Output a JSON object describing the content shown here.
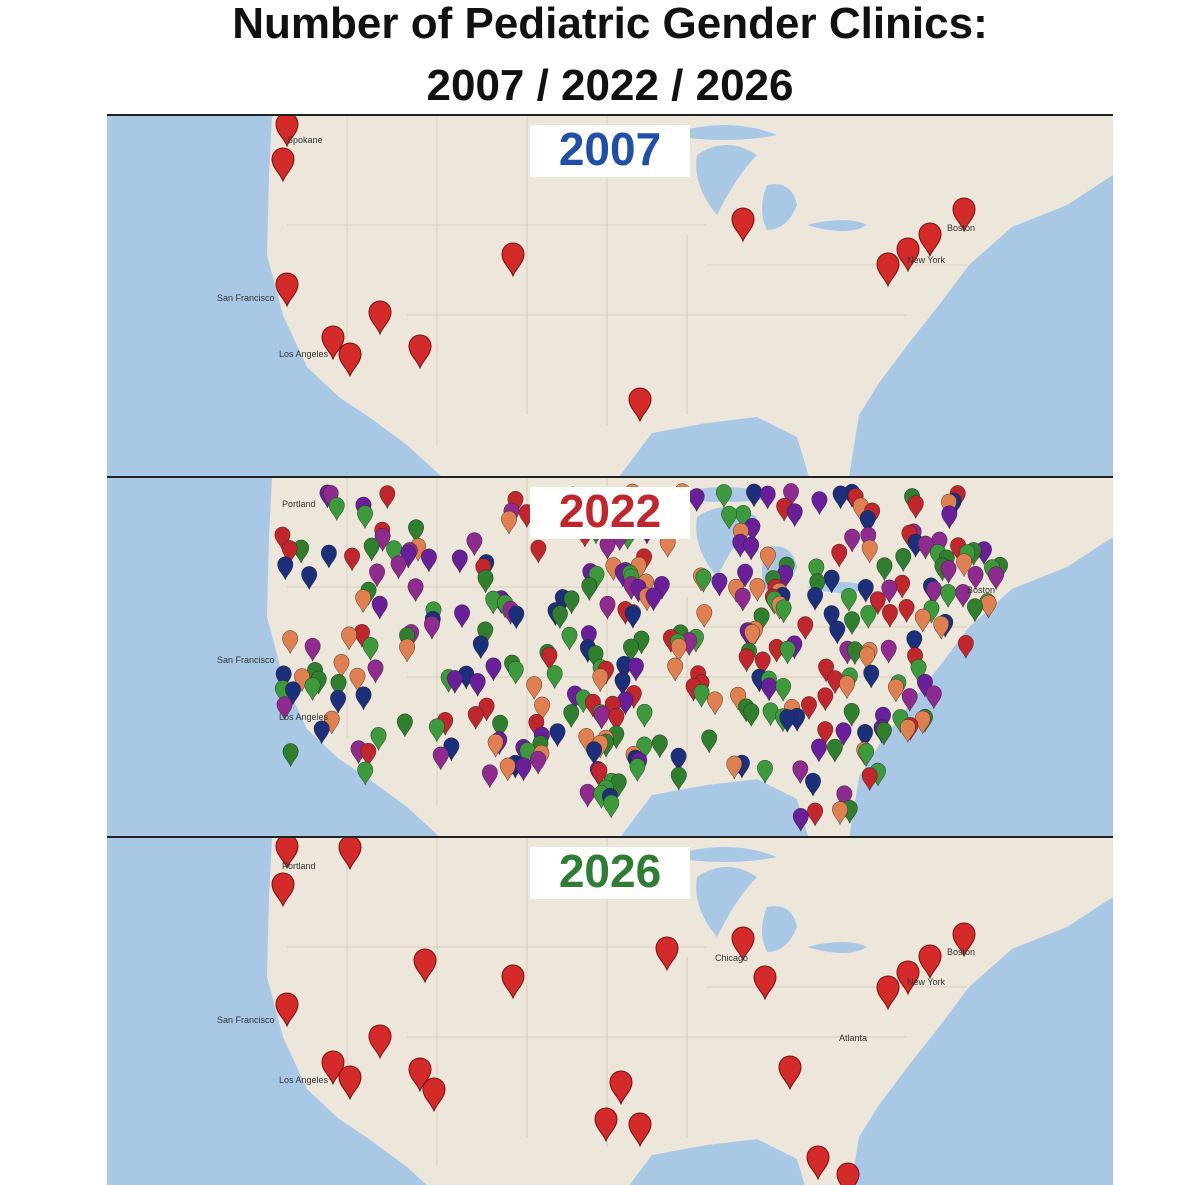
{
  "title": {
    "line1": "Number of Pediatric Gender Clinics:",
    "line2": "2007 / 2022 / 2026"
  },
  "panels": [
    {
      "label": "2007",
      "places": [
        "Spokane",
        "San Francisco",
        "Los Angeles",
        "Boston",
        "New York"
      ]
    },
    {
      "label": "2022",
      "places": [
        "Portland",
        "San Francisco",
        "Los Angeles",
        "Boston"
      ]
    },
    {
      "label": "2026",
      "places": [
        "Portland",
        "San Francisco",
        "Los Angeles",
        "Chicago",
        "Boston",
        "New York",
        "Atlanta"
      ]
    }
  ]
}
